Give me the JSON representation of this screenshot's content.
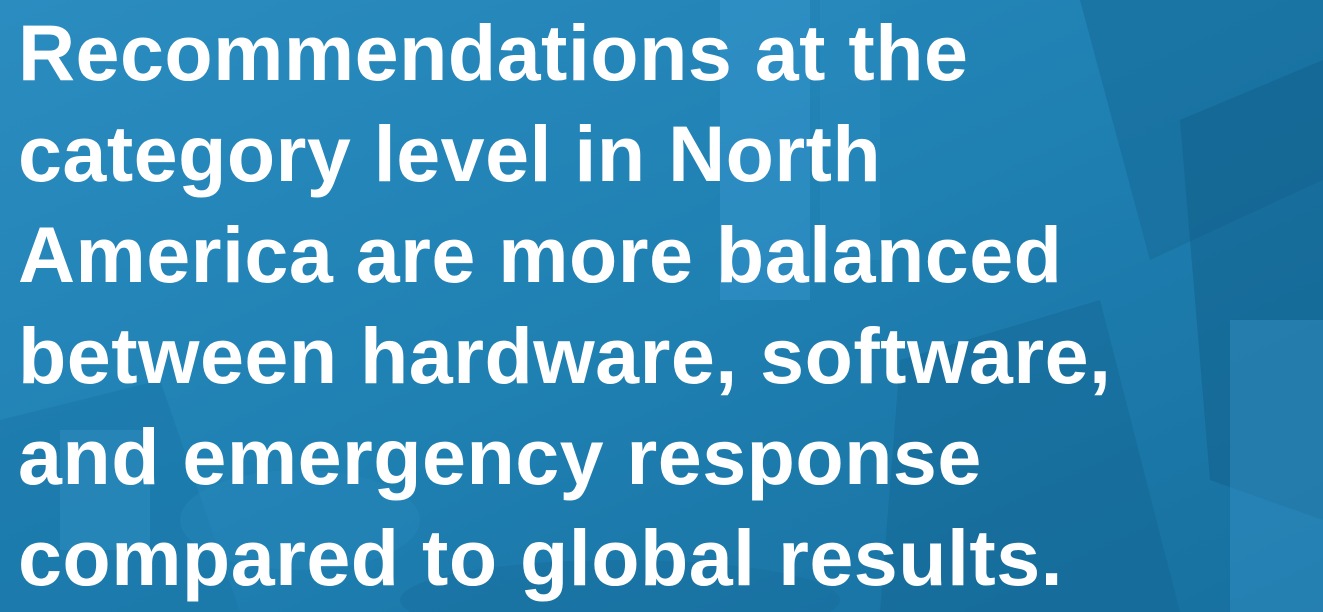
{
  "headline": {
    "lines": [
      "Recommendations at the",
      "category level in North",
      "America are more balanced",
      "between hardware, software,",
      "and emergency response",
      "compared to global results."
    ]
  },
  "colors": {
    "overlay": "#1f7fb0",
    "text": "#ffffff"
  }
}
